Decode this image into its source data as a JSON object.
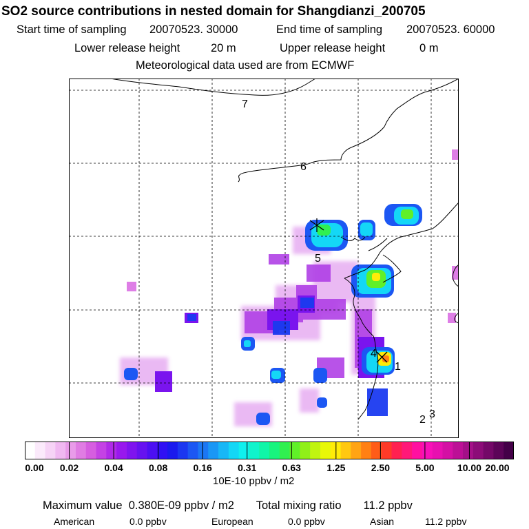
{
  "title": "SO2 source contributions in nested domain for Shangdianzi_200705",
  "sampling": {
    "start_label": "Start time of sampling",
    "start_value": "20070523. 30000",
    "end_label": "End time of sampling",
    "end_value": "20070523. 60000"
  },
  "release": {
    "lower_label": "Lower release height",
    "lower_value": "20 m",
    "upper_label": "Upper release height",
    "upper_value": "0 m"
  },
  "met_line": "Meteorological data used are from ECMWF",
  "map": {
    "region_labels": [
      "7",
      "6",
      "5",
      "4",
      "1",
      "2",
      "3"
    ],
    "receptor_marker": "station-cross"
  },
  "colorbar": {
    "tick_labels": [
      "0.00",
      "0.02",
      "0.04",
      "0.08",
      "0.16",
      "0.31",
      "0.63",
      "1.25",
      "2.50",
      "5.00",
      "10.00",
      "20.00"
    ],
    "colors": [
      "#ffffff",
      "#fbeafb",
      "#f6d3f6",
      "#f0b8f1",
      "#e99be9",
      "#e07ce3",
      "#d65ee0",
      "#c442e4",
      "#b02ae8",
      "#9818ed",
      "#7f14ef",
      "#6612f0",
      "#4c10f2",
      "#3010f4",
      "#1a1aee",
      "#1b37f1",
      "#1c57f3",
      "#1c77f4",
      "#1a97f5",
      "#18b7f6",
      "#14d7f6",
      "#10f0ee",
      "#10f4cc",
      "#10f6a8",
      "#18f47e",
      "#30f050",
      "#60f028",
      "#90f018",
      "#c0f410",
      "#e8f808",
      "#ffec08",
      "#ffc810",
      "#ffa414",
      "#ff8014",
      "#ff5c18",
      "#ff3a28",
      "#ff2050",
      "#ff1878",
      "#ff10a0",
      "#f810b8",
      "#e810b0",
      "#d410a4",
      "#bc1096",
      "#a41088",
      "#8c0c78",
      "#740868",
      "#5c0458",
      "#440048"
    ],
    "units": "10E-10 ppbv / m2"
  },
  "summary": {
    "max_label": "Maximum value",
    "max_value": "0.380E-09 ppbv / m2",
    "total_label": "Total mixing ratio",
    "total_value": "11.2 ppbv"
  },
  "regions": [
    {
      "name": "American",
      "value": "0.0 ppbv"
    },
    {
      "name": "European",
      "value": "0.0 ppbv"
    },
    {
      "name": "Asian",
      "value": "11.2 ppbv"
    }
  ]
}
